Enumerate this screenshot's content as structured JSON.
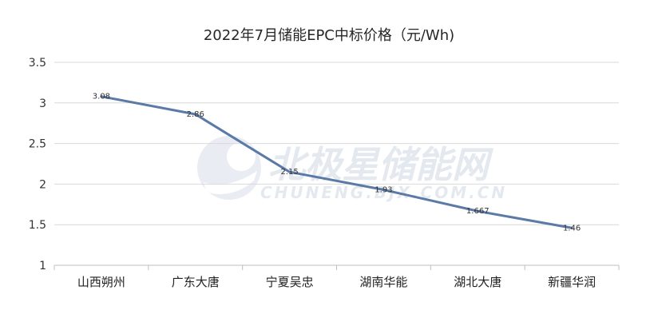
{
  "watermark": {
    "main": "北极星储能网",
    "sub": "CHUNENG.BJX.COM.CN"
  },
  "chart_data": {
    "type": "line",
    "title": "2022年7月储能EPC中标价格（元/Wh)",
    "categories": [
      "山西朔州",
      "广东大唐",
      "宁夏吴忠",
      "湖南华能",
      "湖北大唐",
      "新疆华润"
    ],
    "series": [
      {
        "values": [
          3.08,
          2.86,
          2.15,
          1.93,
          1.667,
          1.46
        ],
        "labels": [
          "3.08",
          "2.86",
          "2.15",
          "1.93",
          "1.667",
          "1.46"
        ],
        "color": "#5b7aa6"
      }
    ],
    "ylim": [
      1,
      3.5
    ],
    "yticks": [
      1,
      1.5,
      2,
      2.5,
      3,
      3.5
    ],
    "ytick_labels": [
      "1",
      "1.5",
      "2",
      "2.5",
      "3",
      "3.5"
    ],
    "xlabel": "",
    "ylabel": "",
    "grid": true,
    "legend": "none"
  }
}
